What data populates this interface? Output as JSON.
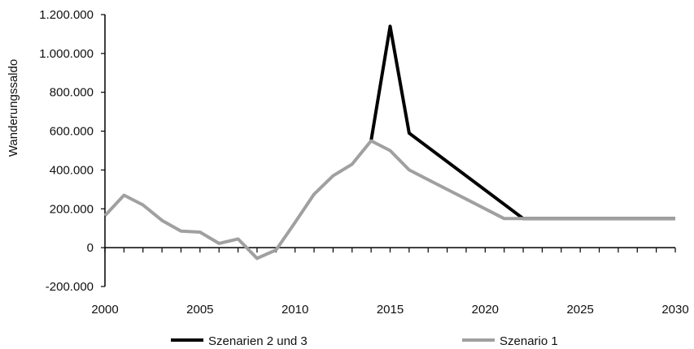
{
  "chart_data": {
    "type": "line",
    "title": "",
    "xlabel": "",
    "ylabel": "Wanderungssaldo",
    "xlim": [
      2000,
      2030
    ],
    "ylim": [
      -200000,
      1200000
    ],
    "x_ticks": [
      2000,
      2005,
      2010,
      2015,
      2020,
      2025,
      2030
    ],
    "x_tick_labels": [
      "2000",
      "2005",
      "2010",
      "2015",
      "2020",
      "2025",
      "2030"
    ],
    "y_ticks": [
      -200000,
      0,
      200000,
      400000,
      600000,
      800000,
      1000000,
      1200000
    ],
    "y_tick_labels": [
      "-200.000",
      "0",
      "200.000",
      "400.000",
      "600.000",
      "800.000",
      "1.000.000",
      "1.200.000"
    ],
    "grid": false,
    "legend_position": "bottom",
    "series": [
      {
        "name": "Szenarien 2 und 3",
        "color": "#000000",
        "x": [
          2014,
          2015,
          2016,
          2022,
          2023,
          2024,
          2025,
          2026,
          2027,
          2028,
          2029,
          2030
        ],
        "values": [
          550000,
          1140000,
          590000,
          150000,
          150000,
          150000,
          150000,
          150000,
          150000,
          150000,
          150000,
          150000
        ]
      },
      {
        "name": "Szenario 1",
        "color": "#a0a0a0",
        "x": [
          2000,
          2001,
          2002,
          2003,
          2004,
          2005,
          2006,
          2007,
          2008,
          2009,
          2010,
          2011,
          2012,
          2013,
          2014,
          2015,
          2016,
          2017,
          2018,
          2019,
          2020,
          2021,
          2022,
          2023,
          2024,
          2025,
          2026,
          2027,
          2028,
          2029,
          2030
        ],
        "values": [
          165000,
          270000,
          220000,
          140000,
          85000,
          80000,
          22000,
          45000,
          -55000,
          -12000,
          130000,
          275000,
          370000,
          430000,
          550000,
          500000,
          400000,
          350000,
          300000,
          250000,
          200000,
          150000,
          150000,
          150000,
          150000,
          150000,
          150000,
          150000,
          150000,
          150000,
          150000
        ]
      }
    ]
  }
}
